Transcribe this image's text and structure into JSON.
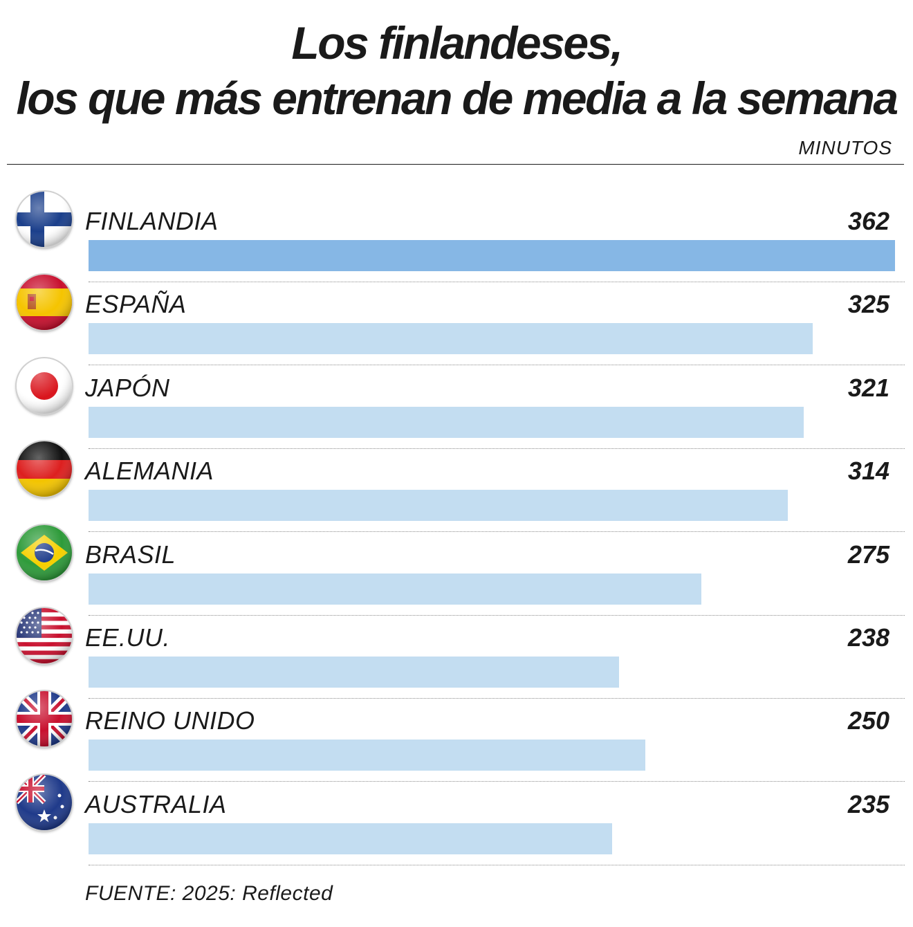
{
  "title_line1": "Los finlandeses,",
  "title_line2": "los que más entrenan de media a la semana",
  "units": "MINUTOS",
  "source": "FUENTE: 2025: Reflected",
  "colors": {
    "highlight_bar": "#86b7e5",
    "bar": "#c3ddf1",
    "text": "#1a1a1a"
  },
  "chart_data": {
    "type": "bar",
    "orientation": "horizontal",
    "title": "Los finlandeses, los que más entrenan de media a la semana",
    "ylabel": "MINUTOS",
    "categories": [
      "FINLANDIA",
      "ESPAÑA",
      "JAPÓN",
      "ALEMANIA",
      "BRASIL",
      "EE.UU.",
      "REINO UNIDO",
      "AUSTRALIA"
    ],
    "values": [
      362,
      325,
      321,
      314,
      275,
      238,
      250,
      235
    ],
    "highlighted": "FINLANDIA",
    "flags": [
      "finland-flag-icon",
      "spain-flag-icon",
      "japan-flag-icon",
      "germany-flag-icon",
      "brazil-flag-icon",
      "usa-flag-icon",
      "uk-flag-icon",
      "australia-flag-icon"
    ],
    "xlim": [
      0,
      362
    ]
  }
}
